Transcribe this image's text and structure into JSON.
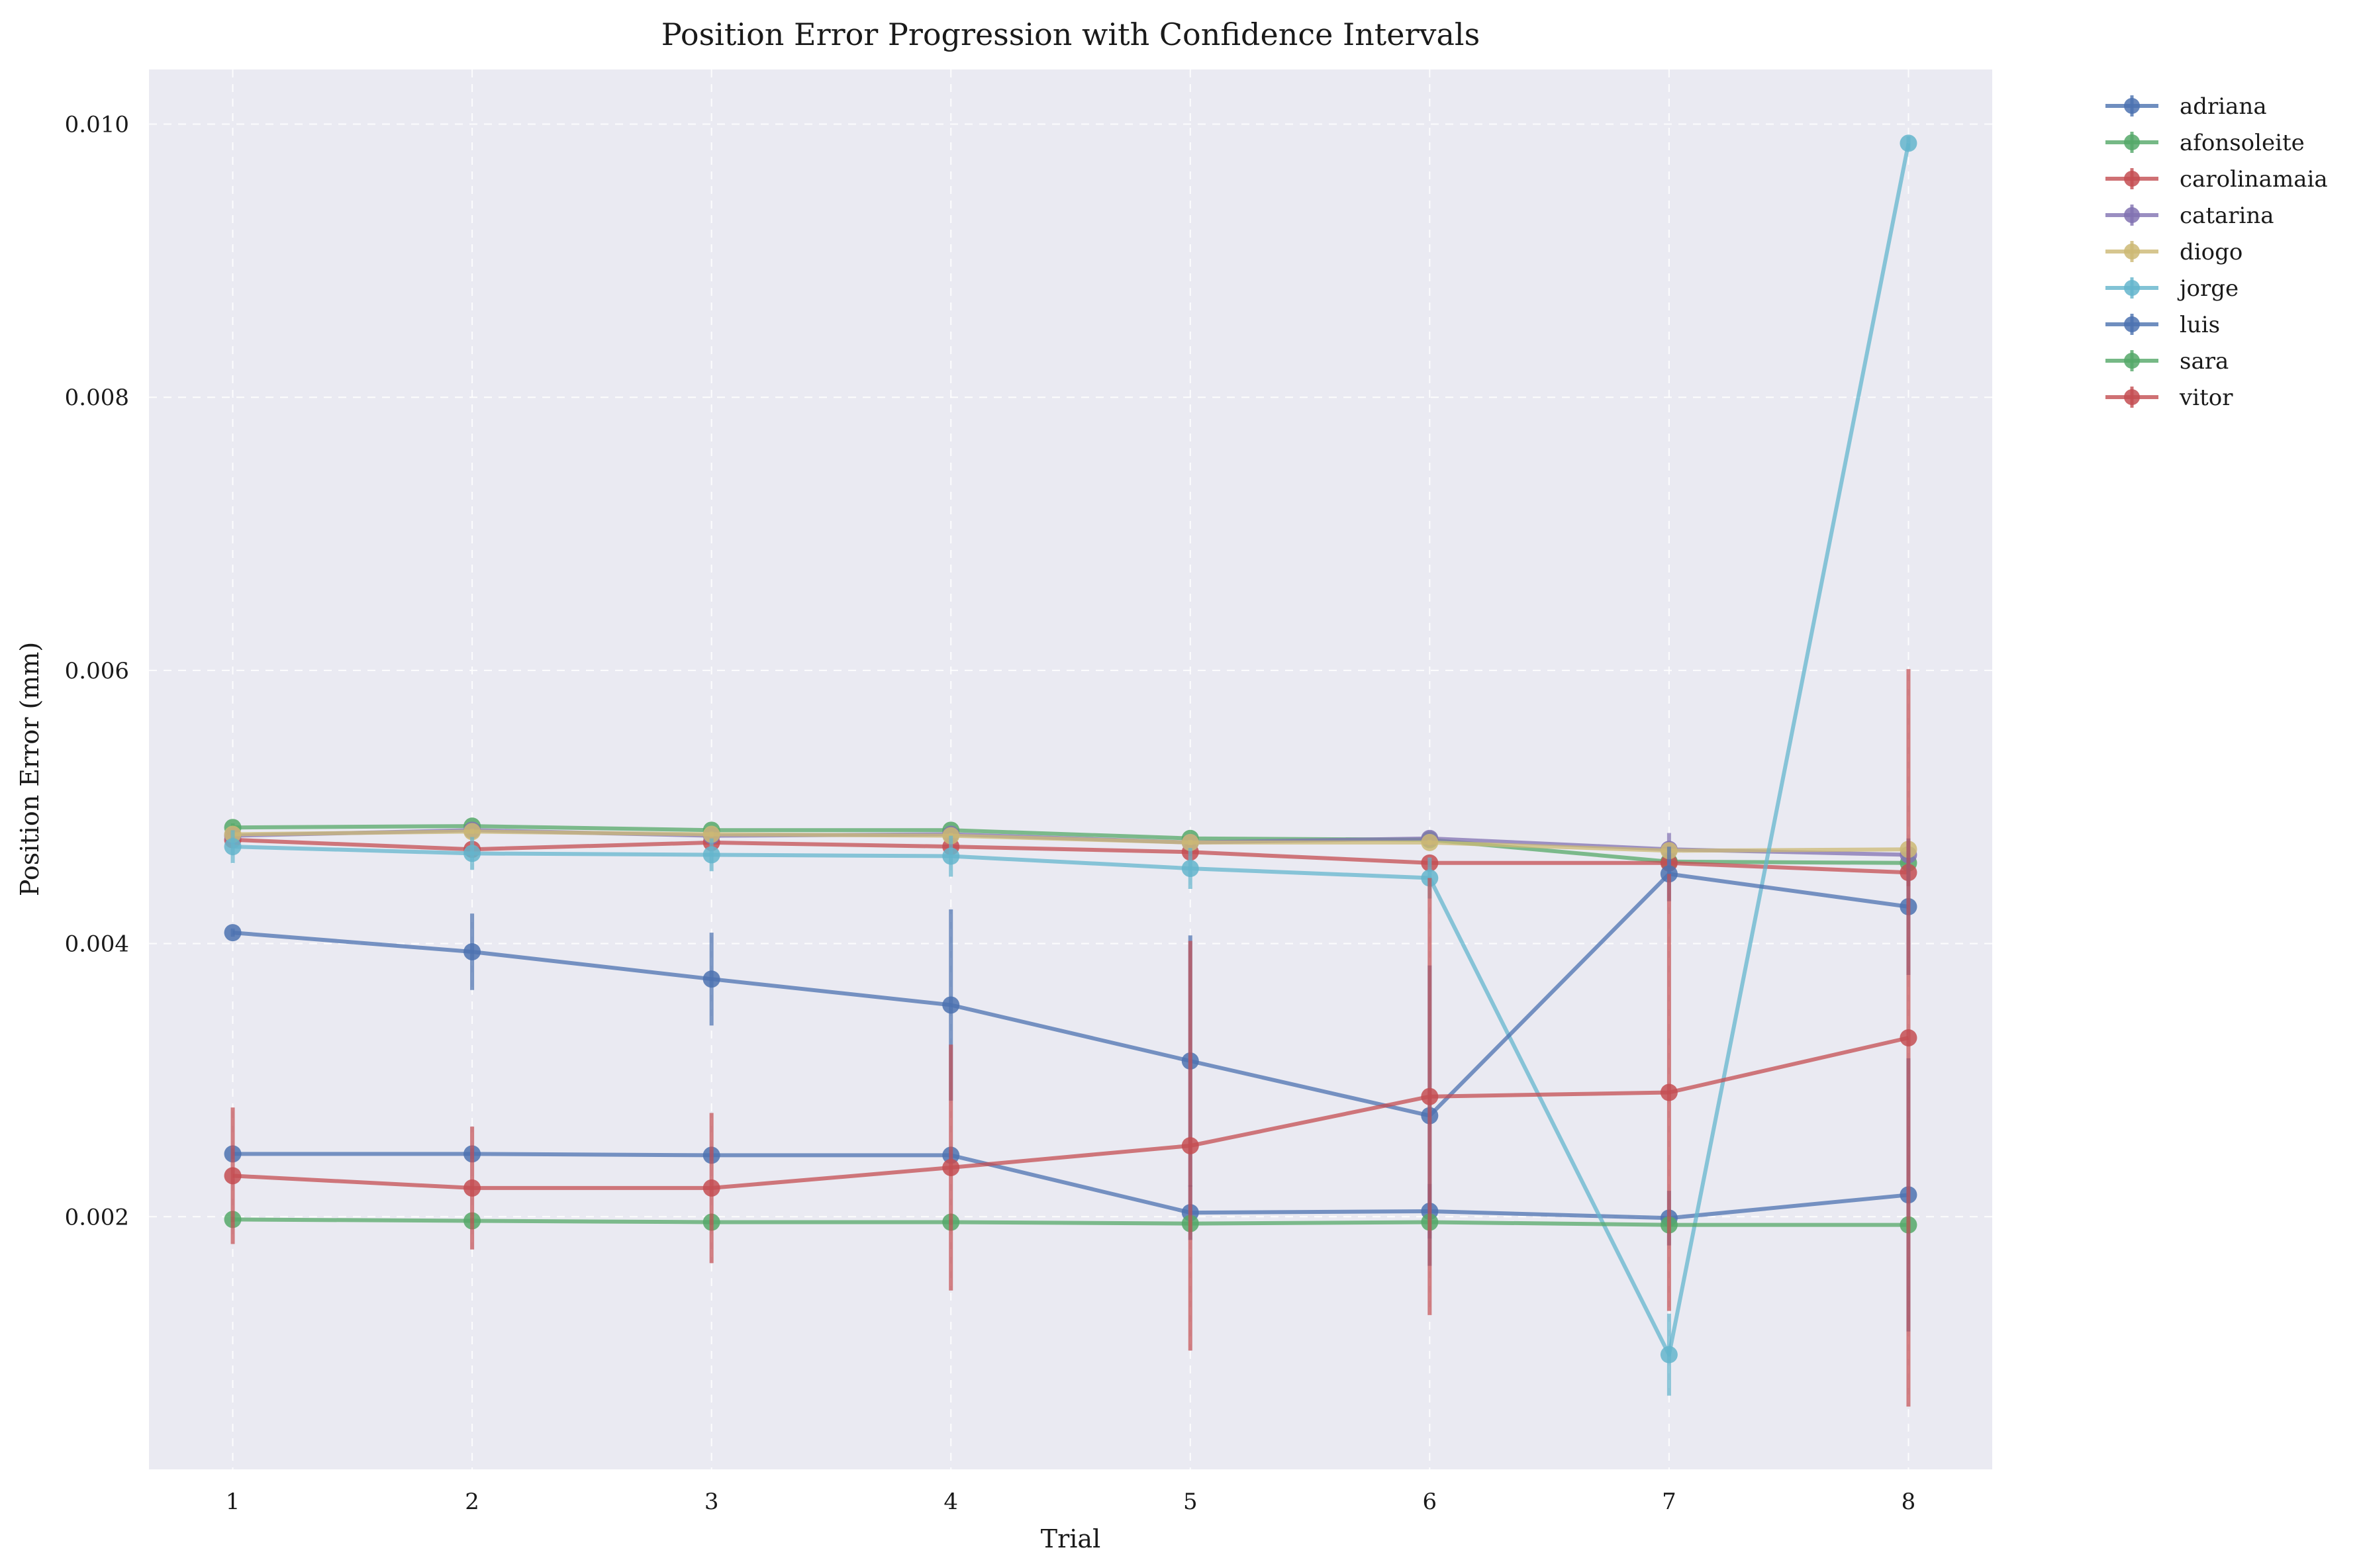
{
  "chart_data": {
    "type": "line",
    "title": "Position Error Progression with Confidence Intervals",
    "xlabel": "Trial",
    "ylabel": "Position Error (mm)",
    "x": [
      1,
      2,
      3,
      4,
      5,
      6,
      7,
      8
    ],
    "x_tick_labels": [
      "1",
      "2",
      "3",
      "4",
      "5",
      "6",
      "7",
      "8"
    ],
    "xlim": [
      0.65,
      8.35
    ],
    "ylim": [
      0.00015,
      0.0104
    ],
    "y_ticks": [
      0.002,
      0.004,
      0.006,
      0.008,
      0.01
    ],
    "y_tick_labels": [
      "0.002",
      "0.004",
      "0.006",
      "0.008",
      "0.010"
    ],
    "grid": true,
    "legend_position": "outside-right-top",
    "colors": {
      "background": "#eaeaf2",
      "blue": "#4c72b0",
      "green": "#55a868",
      "red": "#c44e52",
      "purple": "#8172b2",
      "yellow": "#ccb974",
      "cyan": "#64b5cd"
    },
    "series": [
      {
        "name": "adriana",
        "color": "#4c72b0",
        "values": [
          0.00246,
          0.00246,
          0.00245,
          0.00245,
          0.00203,
          0.00204,
          0.00199,
          0.00216
        ],
        "errors": [
          4e-05,
          4e-05,
          4e-05,
          4e-05,
          0.0002,
          0.0002,
          0.0002,
          0.001
        ]
      },
      {
        "name": "afonsoleite",
        "color": "#55a868",
        "values": [
          0.00485,
          0.00486,
          0.00483,
          0.00483,
          0.00477,
          0.00476,
          0.0046,
          0.00459
        ],
        "errors": [
          3e-05,
          3e-05,
          3e-05,
          3e-05,
          3e-05,
          3e-05,
          5e-05,
          5e-05
        ]
      },
      {
        "name": "carolinamaia",
        "color": "#c44e52",
        "values": [
          0.00476,
          0.00469,
          0.00474,
          0.00471,
          0.00467,
          0.00459,
          0.00459,
          0.00452
        ],
        "errors": [
          3e-05,
          3e-05,
          3e-05,
          3e-05,
          3e-05,
          3e-05,
          3e-05,
          0.0001
        ]
      },
      {
        "name": "catarina",
        "color": "#8172b2",
        "values": [
          0.00479,
          0.00483,
          0.00479,
          0.0048,
          0.00474,
          0.00477,
          0.00469,
          0.00465
        ],
        "errors": [
          2e-05,
          2e-05,
          2e-05,
          2e-05,
          2e-05,
          2e-05,
          0.00012,
          0.0001
        ]
      },
      {
        "name": "diogo",
        "color": "#ccb974",
        "values": [
          0.0048,
          0.00482,
          0.0048,
          0.00479,
          0.00474,
          0.00474,
          0.00468,
          0.00469
        ],
        "errors": [
          2e-05,
          2e-05,
          2e-05,
          2e-05,
          2e-05,
          2e-05,
          3e-05,
          3e-05
        ]
      },
      {
        "name": "jorge",
        "color": "#64b5cd",
        "values": [
          0.00471,
          0.00466,
          0.00465,
          0.00464,
          0.00455,
          0.00448,
          0.00099,
          0.00986
        ],
        "errors": [
          0.00012,
          0.00012,
          0.00012,
          0.00015,
          0.00015,
          0.00015,
          0.0003,
          5e-05
        ]
      },
      {
        "name": "luis",
        "color": "#4c72b0",
        "values": [
          0.00408,
          0.00394,
          0.00374,
          0.00355,
          0.00314,
          0.00274,
          0.00451,
          0.00427
        ],
        "errors": [
          3e-05,
          0.00028,
          0.00034,
          0.0007,
          0.00092,
          0.0011,
          0.0002,
          0.0005
        ]
      },
      {
        "name": "sara",
        "color": "#55a868",
        "values": [
          0.00198,
          0.00197,
          0.00196,
          0.00196,
          0.00195,
          0.00196,
          0.00194,
          0.00194
        ],
        "errors": [
          2e-05,
          2e-05,
          2e-05,
          2e-05,
          2e-05,
          2e-05,
          3e-05,
          3e-05
        ]
      },
      {
        "name": "vitor",
        "color": "#c44e52",
        "values": [
          0.0023,
          0.00221,
          0.00221,
          0.00236,
          0.00252,
          0.00288,
          0.00291,
          0.00331
        ],
        "errors": [
          0.0005,
          0.00045,
          0.00055,
          0.0009,
          0.0015,
          0.0016,
          0.0016,
          0.0027
        ]
      }
    ]
  }
}
